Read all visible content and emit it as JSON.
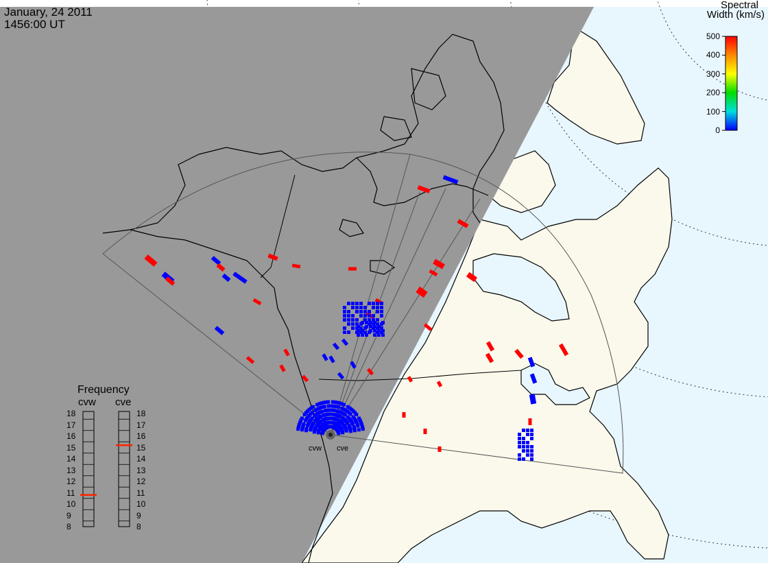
{
  "header": {
    "date": "January, 24 2011",
    "time": "1456:00 UT"
  },
  "colorbar": {
    "title_line1": "Spectral",
    "title_line2": "Width (km/s)",
    "ticks": [
      "500",
      "400",
      "300",
      "200",
      "100",
      "0"
    ],
    "colors": [
      "#ff0000",
      "#ff8800",
      "#ffff00",
      "#00dd00",
      "#00dddd",
      "#0000ff"
    ]
  },
  "frequency": {
    "title": "Frequency",
    "left_label": "cvw",
    "right_label": "cve",
    "ticks": [
      "18",
      "17",
      "16",
      "15",
      "14",
      "13",
      "12",
      "11",
      "10",
      "9",
      "8"
    ],
    "cvw_mhz": 10.8,
    "cve_mhz": 15.2
  },
  "radars": {
    "west_label": "cvw",
    "east_label": "cve"
  },
  "colors": {
    "night": "#999999",
    "land": "#fbf9ec",
    "ocean": "#e8f6fe",
    "echo_high": "#ff0000",
    "echo_low": "#0000ff"
  }
}
